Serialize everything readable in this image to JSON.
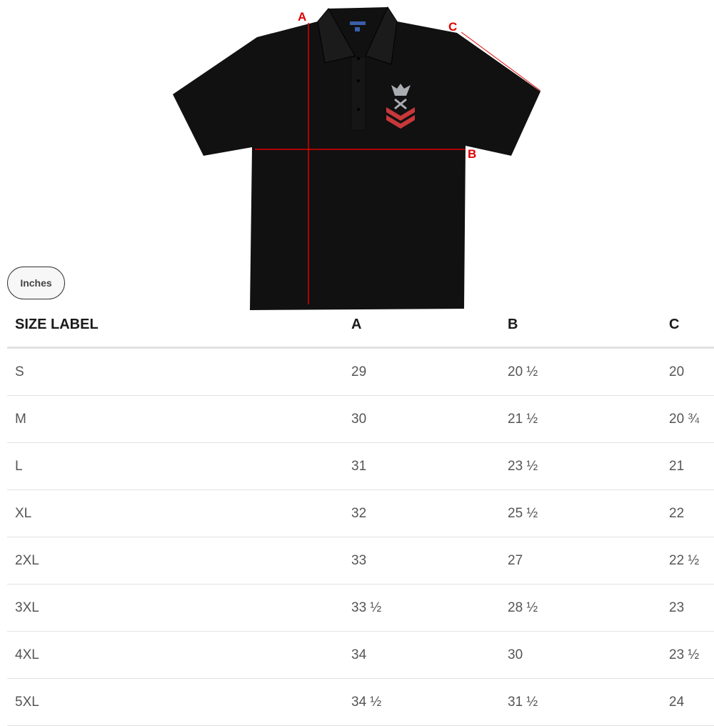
{
  "diagram": {
    "labels": {
      "a": "A",
      "b": "B",
      "c": "C"
    },
    "line_color": "#e00000",
    "shirt_color": "#111111",
    "chevron_color": "#c8383a",
    "emblem_color": "#a9adb3",
    "emblem_icon": "eagle-crossed-keys-rating-badge"
  },
  "unit_toggle": {
    "label": "Inches"
  },
  "table": {
    "headers": [
      "SIZE LABEL",
      "A",
      "B",
      "C"
    ],
    "rows": [
      [
        "S",
        "29",
        "20 ½",
        "20"
      ],
      [
        "M",
        "30",
        "21 ½",
        "20 ¾"
      ],
      [
        "L",
        "31",
        "23 ½",
        "21"
      ],
      [
        "XL",
        "32",
        "25 ½",
        "22"
      ],
      [
        "2XL",
        "33",
        "27",
        "22 ½"
      ],
      [
        "3XL",
        "33 ½",
        "28 ½",
        "23"
      ],
      [
        "4XL",
        "34",
        "30",
        "23 ½"
      ],
      [
        "5XL",
        "34 ½",
        "31 ½",
        "24"
      ]
    ]
  }
}
